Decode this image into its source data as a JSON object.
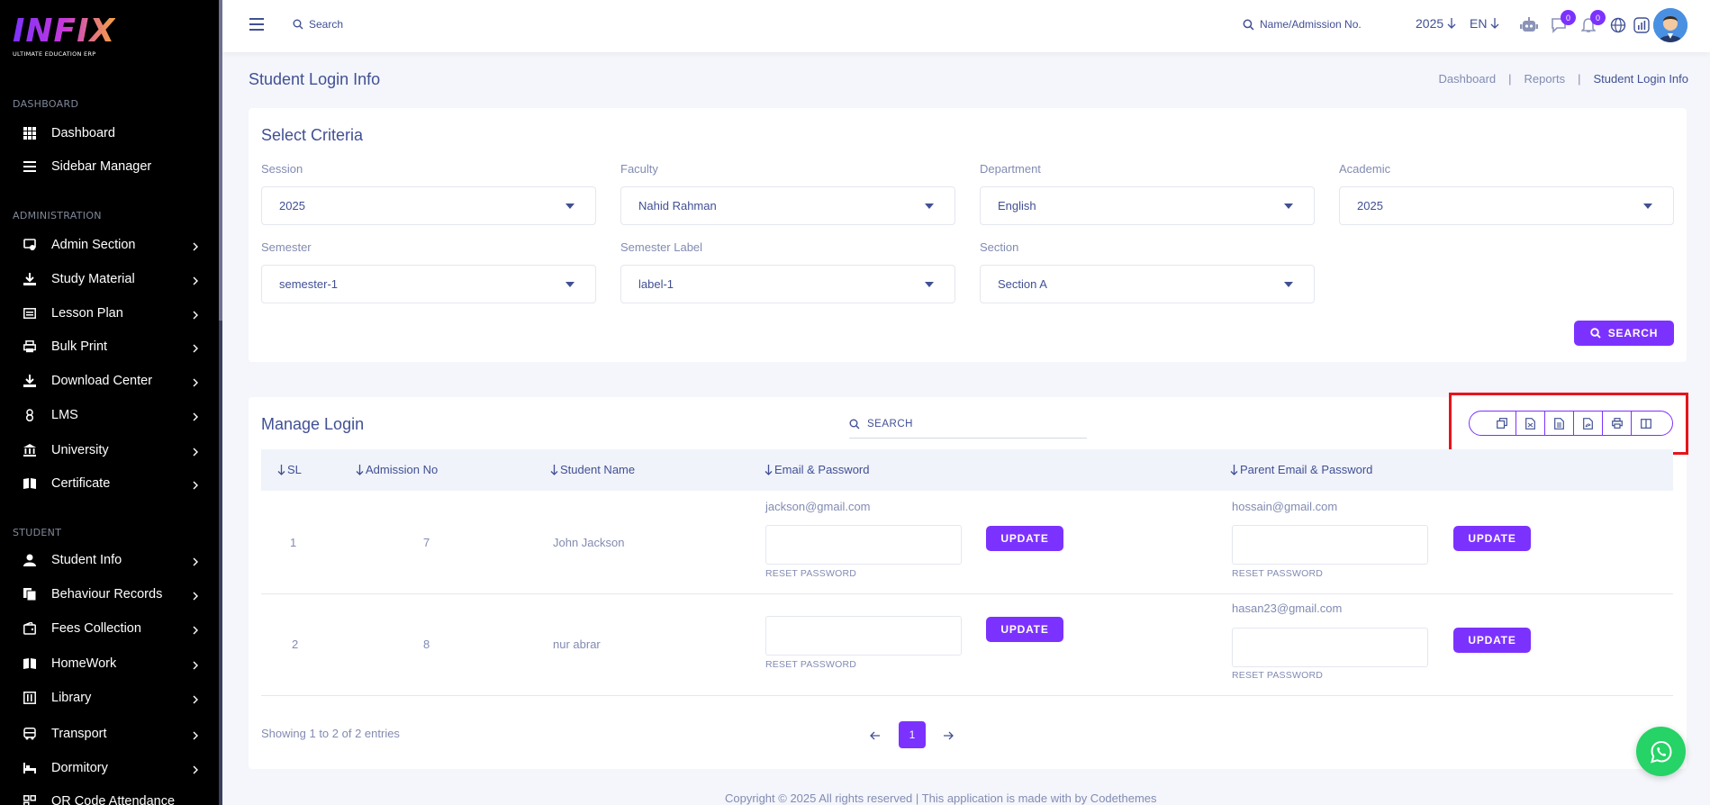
{
  "brand": {
    "logo": "INFIX",
    "tagline": "ULTIMATE EDUCATION ERP"
  },
  "sidebar": {
    "sections": [
      {
        "label": "DASHBOARD"
      },
      {
        "label": "ADMINISTRATION"
      },
      {
        "label": "STUDENT"
      }
    ],
    "items": [
      {
        "label": "Dashboard",
        "icon": "grid-icon"
      },
      {
        "label": "Sidebar Manager",
        "icon": "list-icon"
      },
      {
        "label": "Admin Section",
        "icon": "admin-icon"
      },
      {
        "label": "Study Material",
        "icon": "download-icon"
      },
      {
        "label": "Lesson Plan",
        "icon": "lesson-icon"
      },
      {
        "label": "Bulk Print",
        "icon": "printer-icon"
      },
      {
        "label": "Download Center",
        "icon": "download-icon"
      },
      {
        "label": "LMS",
        "icon": "lms-icon"
      },
      {
        "label": "University",
        "icon": "university-icon"
      },
      {
        "label": "Certificate",
        "icon": "certificate-icon"
      },
      {
        "label": "Student Info",
        "icon": "user-icon"
      },
      {
        "label": "Behaviour Records",
        "icon": "records-icon"
      },
      {
        "label": "Fees Collection",
        "icon": "wallet-icon"
      },
      {
        "label": "HomeWork",
        "icon": "book-icon"
      },
      {
        "label": "Library",
        "icon": "library-icon"
      },
      {
        "label": "Transport",
        "icon": "bus-icon"
      },
      {
        "label": "Dormitory",
        "icon": "bed-icon"
      },
      {
        "label": "QR Code Attendance",
        "icon": "qr-icon"
      }
    ]
  },
  "header": {
    "search_label": "Search",
    "student_search_label": "Name/Admission No.",
    "year": "2025",
    "language": "EN",
    "chat_badge": "0",
    "notification_badge": "0"
  },
  "page": {
    "title": "Student Login Info",
    "breadcrumb": [
      "Dashboard",
      "Reports",
      "Student Login Info"
    ]
  },
  "criteria": {
    "title": "Select Criteria",
    "fields": [
      {
        "label": "Session",
        "value": "2025"
      },
      {
        "label": "Faculty",
        "value": "Nahid Rahman"
      },
      {
        "label": "Department",
        "value": "English"
      },
      {
        "label": "Academic",
        "value": "2025"
      },
      {
        "label": "Semester",
        "value": "semester-1"
      },
      {
        "label": "Semester Label",
        "value": "label-1"
      },
      {
        "label": "Section",
        "value": "Section A"
      }
    ],
    "search_button": "SEARCH"
  },
  "manage": {
    "title": "Manage Login",
    "search_placeholder": "SEARCH",
    "columns": [
      "SL",
      "Admission No",
      "Student Name",
      "Email & Password",
      "Parent Email & Password"
    ],
    "rows": [
      {
        "sl": "1",
        "admission_no": "7",
        "name": "John Jackson",
        "email": "jackson@gmail.com",
        "parent_email": "hossain@gmail.com"
      },
      {
        "sl": "2",
        "admission_no": "8",
        "name": "nur abrar",
        "email": "",
        "parent_email": "hasan23@gmail.com"
      }
    ],
    "update_label": "UPDATE",
    "reset_label": "RESET PASSWORD",
    "showing": "Showing 1 to 2 of 2 entries",
    "current_page": "1",
    "export_buttons": [
      "copy-icon",
      "csv-icon",
      "excel-icon",
      "pdf-icon",
      "print-icon",
      "columns-icon"
    ]
  },
  "footer": {
    "text": "Copyright © 2025 All rights reserved | This application is made with by Codethemes"
  },
  "colors": {
    "primary": "#7c32ff",
    "text": "#415094",
    "muted": "#828bb2",
    "highlight": "#e6141c"
  }
}
